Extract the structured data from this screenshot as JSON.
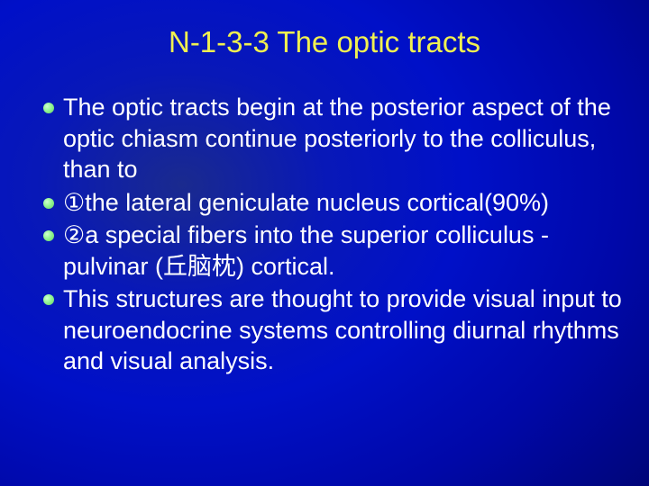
{
  "slide": {
    "title": "N-1-3-3  The optic tracts",
    "title_color": "#f0f050",
    "title_fontsize": 33,
    "body_fontsize": 27,
    "body_color": "#ffffff",
    "bullet_color": "#98f898",
    "background_gradient": {
      "type": "radial",
      "center": "28% 38%",
      "stops": [
        "#1a2a8e",
        "#0818b8",
        "#0010c8",
        "#0008a8",
        "#000578",
        "#000248",
        "#000010"
      ]
    },
    "bullets": [
      "The optic tracts begin at the posterior aspect of the optic chiasm continue posteriorly to  the  colliculus, than  to",
      "①the lateral geniculate nucleus cortical(90%)",
      "②a special  fibers into the superior colliculus - pulvinar (丘脑枕) cortical.",
      "This structures are  thought to provide visual input to neuroendocrine systems controlling diurnal rhythms and visual analysis."
    ]
  }
}
